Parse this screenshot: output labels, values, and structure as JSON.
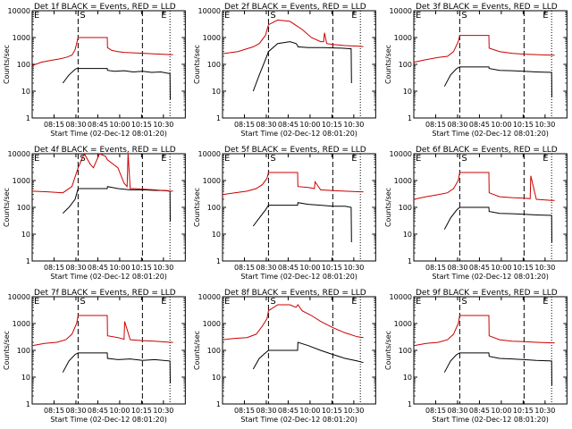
{
  "figure": {
    "ylabel": "Counts/sec",
    "xlabel": "Start Time (02-Dec-12 08:01:20)"
  },
  "chart_data": [
    {
      "type": "line",
      "title": "Det 1f BLACK = Events, RED = LLD",
      "xlabel": "Start Time (02-Dec-12 08:01:20)",
      "ylabel": "Counts/sec",
      "y_scale": "log",
      "ylim": [
        1,
        10000
      ],
      "yticks": [
        "1",
        "10",
        "100",
        "1000",
        "10000"
      ],
      "xticks": [
        "08:15",
        "08:30",
        "08:45",
        "10:00",
        "10:15",
        "10:30"
      ],
      "xlim_minutes": [
        0,
        50
      ],
      "marker_S_minute": 15,
      "marker_E_minute": 36,
      "marker_E2_minute": 45,
      "series": [
        {
          "name": "Events",
          "color": "#000000",
          "x": [
            10,
            12,
            14,
            14.5,
            15,
            24.5,
            24.6,
            27,
            30,
            33,
            36,
            39,
            42,
            45,
            45.1
          ],
          "y": [
            20,
            40,
            65,
            70,
            70,
            70,
            60,
            55,
            58,
            52,
            55,
            50,
            52,
            45,
            5
          ]
        },
        {
          "name": "LLD",
          "color": "#cc0000",
          "x": [
            0,
            3,
            6,
            9,
            11,
            13,
            14,
            14.5,
            15,
            24.5,
            24.6,
            26,
            28,
            30,
            33,
            36,
            39,
            42,
            45,
            46
          ],
          "y": [
            90,
            120,
            140,
            160,
            180,
            220,
            350,
            600,
            1000,
            1000,
            420,
            330,
            300,
            280,
            270,
            260,
            250,
            240,
            230,
            230
          ]
        }
      ]
    },
    {
      "type": "line",
      "title": "Det 2f BLACK = Events, RED = LLD",
      "xlabel": "Start Time (02-Dec-12 08:01:20)",
      "ylabel": "Counts/sec",
      "y_scale": "log",
      "ylim": [
        1,
        10000
      ],
      "yticks": [
        "1",
        "10",
        "100",
        "1000",
        "10000"
      ],
      "xticks": [
        "08:15",
        "08:30",
        "08:45",
        "10:00",
        "10:15",
        "10:30"
      ],
      "xlim_minutes": [
        0,
        50
      ],
      "marker_S_minute": 15,
      "marker_E_minute": 36,
      "marker_E2_minute": 45,
      "series": [
        {
          "name": "Events",
          "color": "#000000",
          "x": [
            10,
            12,
            14,
            15,
            18,
            22,
            24,
            24.5,
            24.6,
            28,
            33,
            36,
            39,
            42,
            42.1
          ],
          "y": [
            10,
            40,
            150,
            300,
            600,
            700,
            600,
            500,
            450,
            420,
            420,
            410,
            400,
            380,
            20
          ]
        },
        {
          "name": "LLD",
          "color": "#cc0000",
          "x": [
            0,
            5,
            10,
            12,
            14,
            15,
            18,
            22,
            26,
            29,
            32,
            33,
            33.3,
            34,
            36,
            40,
            44,
            46
          ],
          "y": [
            250,
            300,
            450,
            600,
            1200,
            3000,
            4500,
            4000,
            2000,
            1000,
            700,
            700,
            1500,
            600,
            550,
            500,
            480,
            460
          ]
        }
      ]
    },
    {
      "type": "line",
      "title": "Det 3f BLACK = Events, RED = LLD",
      "xlabel": "Start Time (02-Dec-12 08:01:20)",
      "ylabel": "Counts/sec",
      "y_scale": "log",
      "ylim": [
        1,
        10000
      ],
      "yticks": [
        "1",
        "10",
        "100",
        "1000",
        "10000"
      ],
      "xticks": [
        "08:15",
        "08:30",
        "08:45",
        "10:00",
        "10:15",
        "10:30"
      ],
      "xlim_minutes": [
        0,
        50
      ],
      "marker_S_minute": 15,
      "marker_E_minute": 36,
      "marker_E2_minute": 45,
      "series": [
        {
          "name": "Events",
          "color": "#000000",
          "x": [
            10,
            12,
            14,
            15,
            24.5,
            24.6,
            28,
            32,
            36,
            40,
            45,
            45.1
          ],
          "y": [
            15,
            40,
            70,
            80,
            80,
            70,
            60,
            58,
            55,
            52,
            50,
            6
          ]
        },
        {
          "name": "LLD",
          "color": "#cc0000",
          "x": [
            0,
            4,
            8,
            11,
            13,
            14.5,
            15,
            24.5,
            24.6,
            28,
            32,
            36,
            40,
            45,
            46
          ],
          "y": [
            120,
            150,
            180,
            200,
            300,
            700,
            1200,
            1200,
            400,
            300,
            260,
            240,
            230,
            220,
            220
          ]
        }
      ]
    },
    {
      "type": "line",
      "title": "Det 4f BLACK = Events, RED = LLD",
      "xlabel": "Start Time (02-Dec-12 08:01:20)",
      "ylabel": "Counts/sec",
      "y_scale": "log",
      "ylim": [
        1,
        10000
      ],
      "yticks": [
        "1",
        "10",
        "100",
        "1000",
        "10000"
      ],
      "xticks": [
        "08:15",
        "08:30",
        "08:45",
        "10:00",
        "10:15",
        "10:30"
      ],
      "xlim_minutes": [
        0,
        50
      ],
      "marker_S_minute": 15,
      "marker_E_minute": 36,
      "marker_E2_minute": 45,
      "series": [
        {
          "name": "Events",
          "color": "#000000",
          "x": [
            10,
            12,
            14,
            15,
            24.5,
            24.6,
            28,
            32,
            36,
            40,
            44,
            45,
            45.1
          ],
          "y": [
            60,
            100,
            200,
            500,
            500,
            600,
            500,
            450,
            450,
            430,
            420,
            400,
            30
          ]
        },
        {
          "name": "LLD",
          "color": "#cc0000",
          "x": [
            0,
            5,
            10,
            13,
            15,
            17,
            19,
            20,
            22,
            24,
            24.5,
            28,
            30,
            31,
            31.3,
            32,
            33,
            36,
            40,
            45,
            46
          ],
          "y": [
            400,
            380,
            350,
            600,
            3000,
            10000,
            4000,
            3000,
            10000,
            8000,
            6000,
            3000,
            800,
            600,
            10000,
            500,
            500,
            480,
            450,
            400,
            400
          ]
        }
      ]
    },
    {
      "type": "line",
      "title": "Det 5f BLACK = Events, RED = LLD",
      "xlabel": "Start Time (02-Dec-12 08:01:20)",
      "ylabel": "Counts/sec",
      "y_scale": "log",
      "ylim": [
        1,
        10000
      ],
      "yticks": [
        "1",
        "10",
        "100",
        "1000",
        "10000"
      ],
      "xticks": [
        "08:15",
        "08:30",
        "08:45",
        "10:00",
        "10:15",
        "10:30"
      ],
      "xlim_minutes": [
        0,
        50
      ],
      "marker_S_minute": 15,
      "marker_E_minute": 36,
      "marker_E2_minute": 45,
      "series": [
        {
          "name": "Events",
          "color": "#000000",
          "x": [
            10,
            12,
            14,
            15,
            24.5,
            24.6,
            28,
            32,
            36,
            40,
            42,
            42.1
          ],
          "y": [
            20,
            40,
            80,
            120,
            120,
            150,
            130,
            120,
            110,
            110,
            100,
            5
          ]
        },
        {
          "name": "LLD",
          "color": "#cc0000",
          "x": [
            0,
            4,
            8,
            11,
            13,
            14.5,
            15,
            24.5,
            24.6,
            28,
            30,
            30.2,
            32,
            36,
            40,
            45,
            46
          ],
          "y": [
            300,
            350,
            400,
            500,
            700,
            1200,
            2000,
            2000,
            600,
            550,
            500,
            900,
            450,
            420,
            400,
            380,
            380
          ]
        }
      ]
    },
    {
      "type": "line",
      "title": "Det 6f BLACK = Events, RED = LLD",
      "xlabel": "Start Time (02-Dec-12 08:01:20)",
      "ylabel": "Counts/sec",
      "y_scale": "log",
      "ylim": [
        1,
        10000
      ],
      "yticks": [
        "1",
        "10",
        "100",
        "1000",
        "10000"
      ],
      "xticks": [
        "08:15",
        "08:30",
        "08:45",
        "10:00",
        "10:15",
        "10:30"
      ],
      "xlim_minutes": [
        0,
        50
      ],
      "marker_S_minute": 15,
      "marker_E_minute": 36,
      "marker_E2_minute": 45,
      "series": [
        {
          "name": "Events",
          "color": "#000000",
          "x": [
            10,
            12,
            14,
            15,
            24.5,
            24.6,
            28,
            32,
            36,
            40,
            45,
            45.1
          ],
          "y": [
            15,
            40,
            80,
            100,
            100,
            70,
            60,
            58,
            55,
            52,
            50,
            5
          ]
        },
        {
          "name": "LLD",
          "color": "#cc0000",
          "x": [
            0,
            4,
            8,
            11,
            13,
            14.5,
            15,
            24.5,
            24.6,
            28,
            32,
            36,
            38,
            38.2,
            40,
            45,
            46
          ],
          "y": [
            200,
            250,
            300,
            350,
            500,
            1000,
            2000,
            2000,
            350,
            250,
            230,
            220,
            210,
            1500,
            200,
            180,
            180
          ]
        }
      ]
    },
    {
      "type": "line",
      "title": "Det 7f BLACK = Events, RED = LLD",
      "xlabel": "Start Time (02-Dec-12 08:01:20)",
      "ylabel": "Counts/sec",
      "y_scale": "log",
      "ylim": [
        1,
        10000
      ],
      "yticks": [
        "1",
        "10",
        "100",
        "1000",
        "10000"
      ],
      "xticks": [
        "08:15",
        "08:30",
        "08:45",
        "10:00",
        "10:15",
        "10:30"
      ],
      "xlim_minutes": [
        0,
        50
      ],
      "marker_S_minute": 15,
      "marker_E_minute": 36,
      "marker_E2_minute": 45,
      "series": [
        {
          "name": "Events",
          "color": "#000000",
          "x": [
            10,
            12,
            14,
            15,
            24.5,
            24.6,
            28,
            32,
            36,
            40,
            45,
            45.1
          ],
          "y": [
            15,
            40,
            70,
            80,
            80,
            50,
            45,
            48,
            42,
            45,
            40,
            6
          ]
        },
        {
          "name": "LLD",
          "color": "#cc0000",
          "x": [
            0,
            4,
            8,
            11,
            13,
            14.5,
            15,
            24.5,
            24.6,
            28,
            30,
            30.2,
            32,
            36,
            40,
            45,
            46
          ],
          "y": [
            150,
            180,
            200,
            250,
            400,
            1000,
            2000,
            2000,
            350,
            300,
            260,
            1200,
            250,
            230,
            220,
            200,
            200
          ]
        }
      ]
    },
    {
      "type": "line",
      "title": "Det 8f BLACK = Events, RED = LLD",
      "xlabel": "Start Time (02-Dec-12 08:01:20)",
      "ylabel": "Counts/sec",
      "y_scale": "log",
      "ylim": [
        1,
        10000
      ],
      "yticks": [
        "1",
        "10",
        "100",
        "1000",
        "10000"
      ],
      "xticks": [
        "08:15",
        "08:30",
        "08:45",
        "10:00",
        "10:15",
        "10:30"
      ],
      "xlim_minutes": [
        0,
        50
      ],
      "marker_S_minute": 15,
      "marker_E_minute": 36,
      "marker_E2_minute": 45,
      "series": [
        {
          "name": "Events",
          "color": "#000000",
          "x": [
            10,
            12,
            14,
            15,
            24.5,
            24.6,
            28,
            32,
            36,
            40,
            44,
            46
          ],
          "y": [
            20,
            50,
            80,
            100,
            100,
            200,
            150,
            100,
            70,
            50,
            40,
            35
          ]
        },
        {
          "name": "LLD",
          "color": "#cc0000",
          "x": [
            0,
            4,
            8,
            11,
            13,
            14.5,
            15,
            18,
            22,
            24,
            24.6,
            26,
            29,
            32,
            36,
            40,
            44,
            46
          ],
          "y": [
            250,
            280,
            300,
            400,
            800,
            1500,
            3000,
            5000,
            5000,
            4000,
            5000,
            3000,
            2000,
            1200,
            700,
            450,
            320,
            300
          ]
        }
      ]
    },
    {
      "type": "line",
      "title": "Det 9f BLACK = Events, RED = LLD",
      "xlabel": "Start Time (02-Dec-12 08:01:20)",
      "ylabel": "Counts/sec",
      "y_scale": "log",
      "ylim": [
        1,
        10000
      ],
      "yticks": [
        "1",
        "10",
        "100",
        "1000",
        "10000"
      ],
      "xticks": [
        "08:15",
        "08:30",
        "08:45",
        "10:00",
        "10:15",
        "10:30"
      ],
      "xlim_minutes": [
        0,
        50
      ],
      "marker_S_minute": 15,
      "marker_E_minute": 36,
      "marker_E2_minute": 45,
      "series": [
        {
          "name": "Events",
          "color": "#000000",
          "x": [
            10,
            12,
            14,
            15,
            24.5,
            24.6,
            28,
            32,
            36,
            40,
            45,
            45.1
          ],
          "y": [
            15,
            40,
            70,
            80,
            80,
            60,
            50,
            48,
            45,
            42,
            40,
            5
          ]
        },
        {
          "name": "LLD",
          "color": "#cc0000",
          "x": [
            0,
            4,
            8,
            11,
            13,
            14.5,
            15,
            24.5,
            24.6,
            28,
            32,
            36,
            40,
            45,
            46
          ],
          "y": [
            150,
            180,
            200,
            250,
            400,
            1000,
            2000,
            2000,
            350,
            250,
            220,
            210,
            200,
            190,
            190
          ]
        }
      ]
    }
  ],
  "marker_labels": {
    "s": "S",
    "e": "E"
  }
}
